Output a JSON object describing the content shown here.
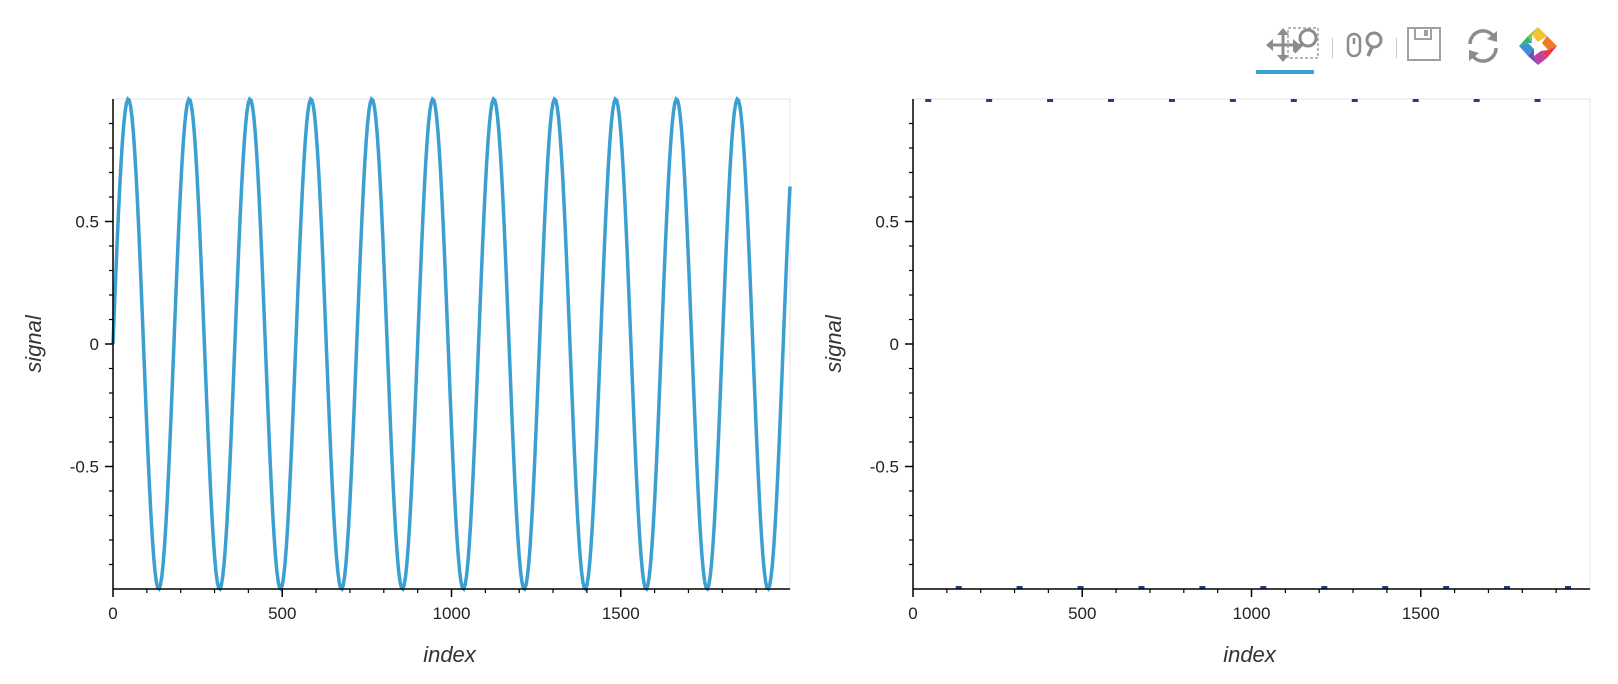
{
  "toolbar": {
    "tools": [
      {
        "name": "pan-tool",
        "icon": "move-icon",
        "active": true
      },
      {
        "name": "box-zoom-tool",
        "icon": "box-zoom-icon",
        "active": false
      },
      {
        "name": "wheel-zoom-tool",
        "icon": "wheel-zoom-icon",
        "active": false
      },
      {
        "name": "save-tool",
        "icon": "save-icon",
        "active": false
      },
      {
        "name": "reset-tool",
        "icon": "reset-icon",
        "active": false
      },
      {
        "name": "bokeh-logo",
        "icon": "bokeh-logo-icon",
        "active": false
      }
    ],
    "accent_color": "#39a1d5"
  },
  "chart_data": [
    {
      "type": "line",
      "xlabel": "index",
      "ylabel": "signal",
      "xlim": [
        0,
        2000
      ],
      "ylim": [
        -1,
        1
      ],
      "xticks": [
        0,
        500,
        1000,
        1500
      ],
      "xtick_labels": [
        "0",
        "500",
        "1000",
        "1500"
      ],
      "yticks": [
        -0.5,
        0,
        0.5
      ],
      "ytick_labels": [
        "-0.5",
        "0",
        "0.5"
      ],
      "grid": false,
      "series": [
        {
          "function": "sin",
          "amplitude": 1,
          "period": 180,
          "x_start": 0,
          "x_end": 2000,
          "sample_step": 4,
          "color": "#3a9fd1",
          "style": "smooth"
        }
      ]
    },
    {
      "type": "line",
      "xlabel": "index",
      "ylabel": "signal",
      "xlim": [
        0,
        2000
      ],
      "ylim": [
        -1,
        1
      ],
      "xticks": [
        0,
        500,
        1000,
        1500
      ],
      "xtick_labels": [
        "0",
        "500",
        "1000",
        "1500"
      ],
      "yticks": [
        -0.5,
        0,
        0.5
      ],
      "ytick_labels": [
        "-0.5",
        "0",
        "0.5"
      ],
      "grid": false,
      "series": [
        {
          "function": "sin",
          "amplitude": 1,
          "period": 180,
          "x_start": 0,
          "x_end": 2000,
          "sample_step": 6,
          "color": "#9ec8e0",
          "style": "step",
          "peak_marker_color": "#1f3e8c"
        }
      ]
    }
  ]
}
